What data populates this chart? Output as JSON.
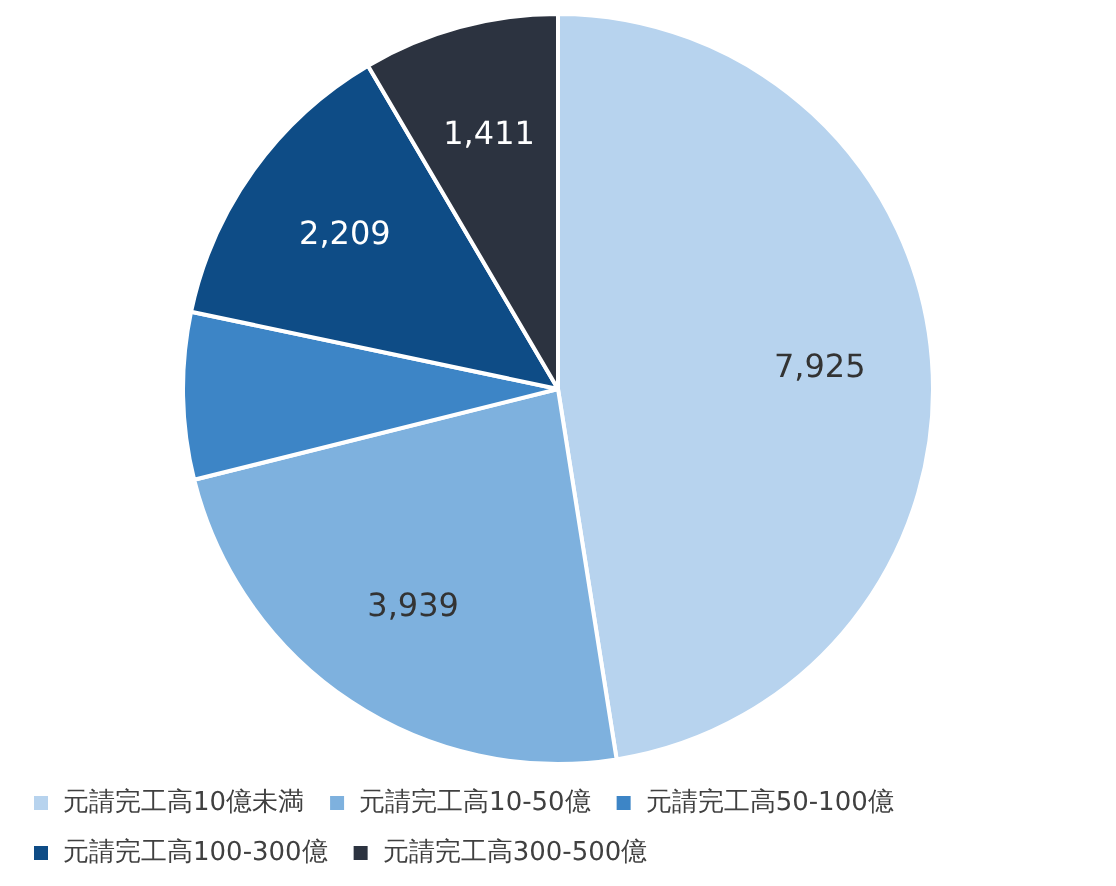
{
  "chart_data": {
    "type": "pie",
    "categories": [
      "元請完工高10億未満",
      "元請完工高10-50億",
      "元請完工高50-100億",
      "元請完工高100-300億",
      "元請完工高300-500億"
    ],
    "values": [
      7925,
      3939,
      1200,
      2209,
      1411
    ],
    "colors": [
      "#b7d3ee",
      "#7eb1de",
      "#3d85c6",
      "#0e4c86",
      "#2c3340"
    ],
    "value_labels": [
      "7,925",
      "3,939",
      null,
      "2,209",
      "1,411"
    ],
    "legend": "bottom"
  }
}
